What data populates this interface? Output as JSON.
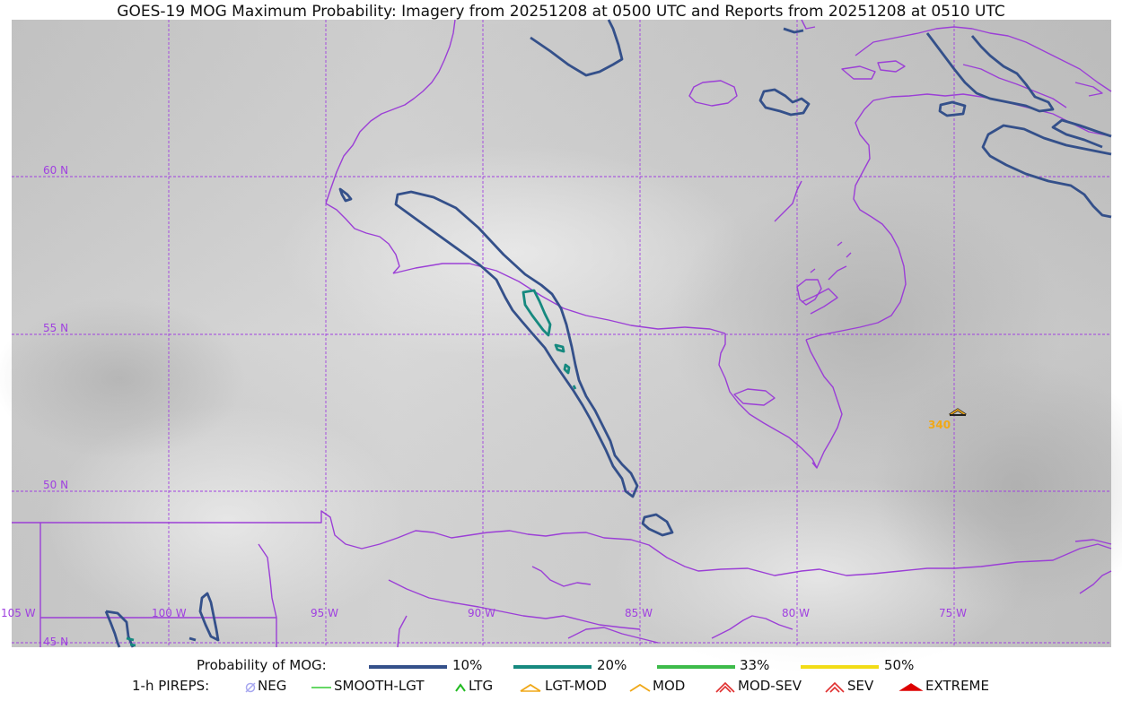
{
  "title": "GOES-19 MOG Maximum Probability: Imagery from 20251208 at 0500 UTC and Reports from 20251208 at 0510 UTC",
  "map": {
    "lat_labels": [
      "60 N",
      "55 N",
      "50 N",
      "45 N"
    ],
    "lon_labels": [
      "105 W",
      "100 W",
      "95 W",
      "90 W",
      "85 W",
      "80 W",
      "75 W"
    ],
    "pirep_label": "340",
    "colors": {
      "grid": "#a040e0",
      "coast": "#9b3fd6",
      "p10": "#34508a",
      "p20": "#16897f",
      "p33": "#3dbb4a",
      "p50": "#f2dc16",
      "pirep_mod": "#f0a818"
    }
  },
  "legend": {
    "prob_title": "Probability of MOG:",
    "prob_items": [
      {
        "label": "10%",
        "color": "#34508a"
      },
      {
        "label": "20%",
        "color": "#16897f"
      },
      {
        "label": "33%",
        "color": "#3dbb4a"
      },
      {
        "label": "50%",
        "color": "#f2dc16"
      }
    ],
    "pirep_title": "1-h PIREPS:",
    "pirep_items": [
      {
        "label": "NEG",
        "icon": "neg-icon",
        "color": "#a8a8f0"
      },
      {
        "label": "SMOOTH-LGT",
        "icon": "line-icon",
        "color": "#33cc33"
      },
      {
        "label": "LTG",
        "icon": "caret-icon",
        "color": "#22bb22"
      },
      {
        "label": "LGT-MOD",
        "icon": "hat-icon",
        "color": "#f0a818"
      },
      {
        "label": "MOD",
        "icon": "hat-icon",
        "color": "#f0a818"
      },
      {
        "label": "MOD-SEV",
        "icon": "double-hat-icon",
        "color": "#e03030"
      },
      {
        "label": "SEV",
        "icon": "double-hat-icon",
        "color": "#e03030"
      },
      {
        "label": "EXTREME",
        "icon": "filled-hat-icon",
        "color": "#dd0000"
      }
    ]
  }
}
